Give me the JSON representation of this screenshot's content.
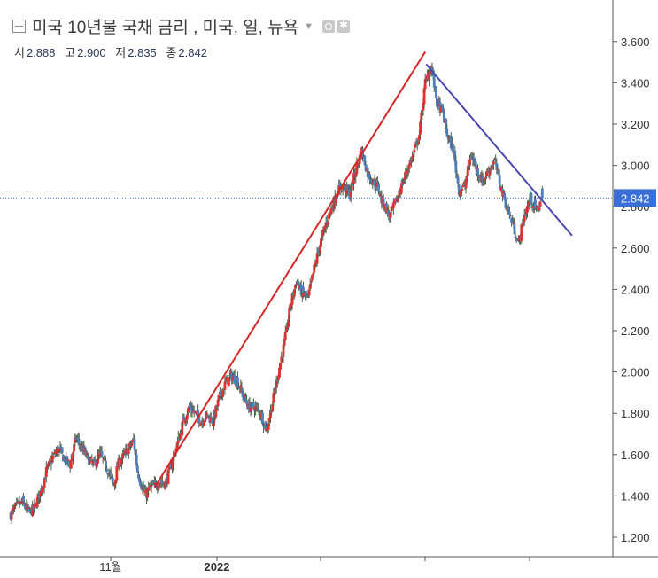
{
  "header": {
    "title": "미국 10년물 국채 금리 , 미국, 일, 뉴욕",
    "ohlc": [
      {
        "label": "시",
        "value": "2.888"
      },
      {
        "label": "고",
        "value": "2.900"
      },
      {
        "label": "저",
        "value": "2.835"
      },
      {
        "label": "종",
        "value": "2.842"
      }
    ]
  },
  "chart_data": {
    "type": "candlestick",
    "title": "미국 10년물 국채 금리 , 미국, 일, 뉴욕",
    "ylim": [
      1.15,
      3.74
    ],
    "y_ticks": [
      "1.200",
      "1.400",
      "1.600",
      "1.800",
      "2.000",
      "2.200",
      "2.400",
      "2.600",
      "2.800",
      "3.000",
      "3.200",
      "3.400",
      "3.600"
    ],
    "x_ticks": [
      "11월",
      "2022",
      "",
      "",
      ""
    ],
    "current_value": "2.842",
    "grid": false,
    "colors": {
      "up": "#e03030",
      "down": "#4d7fb8",
      "support_line": "#d32828",
      "resistance_line": "#4848b0",
      "price_line": "#4a7bd8",
      "price_label_bg": "#3a6fd8"
    },
    "close_path": [
      [
        0,
        1.31
      ],
      [
        6,
        1.35
      ],
      [
        12,
        1.37
      ],
      [
        18,
        1.32
      ],
      [
        24,
        1.34
      ],
      [
        30,
        1.42
      ],
      [
        36,
        1.52
      ],
      [
        42,
        1.58
      ],
      [
        48,
        1.63
      ],
      [
        54,
        1.58
      ],
      [
        60,
        1.55
      ],
      [
        66,
        1.68
      ],
      [
        72,
        1.63
      ],
      [
        78,
        1.58
      ],
      [
        84,
        1.55
      ],
      [
        90,
        1.6
      ],
      [
        96,
        1.55
      ],
      [
        100,
        1.5
      ],
      [
        104,
        1.45
      ],
      [
        108,
        1.55
      ],
      [
        112,
        1.58
      ],
      [
        118,
        1.62
      ],
      [
        124,
        1.67
      ],
      [
        128,
        1.52
      ],
      [
        132,
        1.45
      ],
      [
        136,
        1.4
      ],
      [
        140,
        1.44
      ],
      [
        146,
        1.45
      ],
      [
        150,
        1.47
      ],
      [
        156,
        1.46
      ],
      [
        162,
        1.55
      ],
      [
        168,
        1.65
      ],
      [
        174,
        1.76
      ],
      [
        180,
        1.83
      ],
      [
        186,
        1.8
      ],
      [
        192,
        1.76
      ],
      [
        198,
        1.79
      ],
      [
        204,
        1.76
      ],
      [
        210,
        1.87
      ],
      [
        216,
        1.94
      ],
      [
        222,
        1.98
      ],
      [
        228,
        1.96
      ],
      [
        234,
        1.89
      ],
      [
        240,
        1.83
      ],
      [
        246,
        1.83
      ],
      [
        252,
        1.8
      ],
      [
        258,
        1.72
      ],
      [
        264,
        1.85
      ],
      [
        270,
        2.0
      ],
      [
        276,
        2.14
      ],
      [
        282,
        2.32
      ],
      [
        288,
        2.44
      ],
      [
        294,
        2.38
      ],
      [
        300,
        2.36
      ],
      [
        306,
        2.5
      ],
      [
        312,
        2.62
      ],
      [
        318,
        2.72
      ],
      [
        324,
        2.8
      ],
      [
        330,
        2.88
      ],
      [
        336,
        2.9
      ],
      [
        342,
        2.86
      ],
      [
        348,
        2.98
      ],
      [
        354,
        3.07
      ],
      [
        360,
        2.96
      ],
      [
        366,
        2.92
      ],
      [
        370,
        2.9
      ],
      [
        374,
        2.83
      ],
      [
        378,
        2.8
      ],
      [
        382,
        2.75
      ],
      [
        388,
        2.82
      ],
      [
        394,
        2.9
      ],
      [
        400,
        2.98
      ],
      [
        406,
        3.05
      ],
      [
        412,
        3.15
      ],
      [
        418,
        3.4
      ],
      [
        424,
        3.48
      ],
      [
        430,
        3.3
      ],
      [
        436,
        3.25
      ],
      [
        440,
        3.15
      ],
      [
        446,
        3.08
      ],
      [
        452,
        2.88
      ],
      [
        458,
        2.9
      ],
      [
        464,
        3.05
      ],
      [
        470,
        2.98
      ],
      [
        476,
        2.92
      ],
      [
        482,
        2.98
      ],
      [
        488,
        3.02
      ],
      [
        494,
        2.9
      ],
      [
        500,
        2.8
      ],
      [
        506,
        2.72
      ],
      [
        512,
        2.62
      ],
      [
        518,
        2.76
      ],
      [
        524,
        2.84
      ],
      [
        530,
        2.78
      ],
      [
        536,
        2.842
      ]
    ],
    "trendlines": [
      {
        "name": "support",
        "from_bar": 145,
        "from_value": 1.44,
        "to_bar": 418,
        "to_value": 3.55
      },
      {
        "name": "resistance",
        "from_bar": 419,
        "from_value": 3.49,
        "to_bar": 566,
        "to_value": 2.66
      }
    ]
  }
}
